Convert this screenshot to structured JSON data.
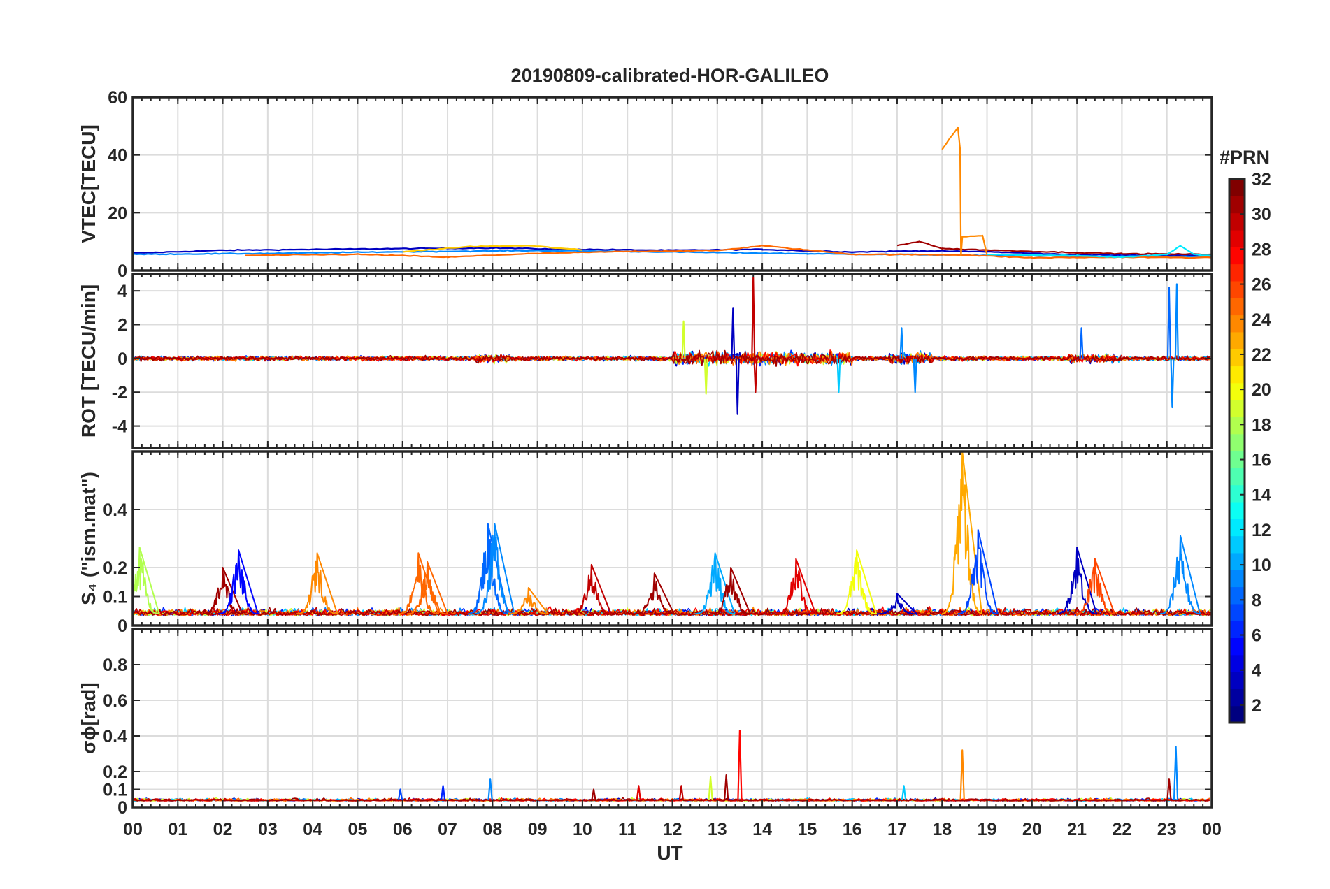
{
  "chart_data": {
    "type": "line",
    "title": "20190809-calibrated-HOR-GALILEO",
    "xlabel": "UT",
    "x_ticks": [
      "00",
      "01",
      "02",
      "03",
      "04",
      "05",
      "06",
      "07",
      "08",
      "09",
      "10",
      "11",
      "12",
      "13",
      "14",
      "15",
      "16",
      "17",
      "18",
      "19",
      "20",
      "21",
      "22",
      "23",
      "00"
    ],
    "xlim": [
      0,
      24
    ],
    "colorbar": {
      "label": "#PRN",
      "range": [
        1,
        32
      ],
      "ticks": [
        "2",
        "4",
        "6",
        "8",
        "10",
        "12",
        "14",
        "16",
        "18",
        "20",
        "22",
        "24",
        "26",
        "28",
        "30",
        "32"
      ],
      "colormap": "jet"
    },
    "panels": [
      {
        "name": "vtec",
        "ylabel": "VTEC[TECU]",
        "ylim": [
          0,
          60
        ],
        "yticks": [
          "0",
          "20",
          "40",
          "60"
        ],
        "series": [
          {
            "prn": 3,
            "points": [
              [
                0,
                6
              ],
              [
                2,
                7
              ],
              [
                4,
                7.3
              ],
              [
                6,
                7.6
              ],
              [
                8,
                7.8
              ],
              [
                10,
                7.3
              ],
              [
                12,
                7
              ],
              [
                14,
                7.3
              ],
              [
                16,
                6.4
              ],
              [
                17.5,
                6.8
              ],
              [
                19,
                6.5
              ],
              [
                21,
                5.4
              ],
              [
                23,
                5.2
              ],
              [
                24,
                5.4
              ]
            ]
          },
          {
            "prn": 9,
            "points": [
              [
                0,
                5.6
              ],
              [
                3,
                5.9
              ],
              [
                6,
                6.5
              ],
              [
                9,
                6.9
              ],
              [
                12,
                6.4
              ],
              [
                15,
                5.8
              ],
              [
                18,
                5.4
              ],
              [
                21,
                4.9
              ],
              [
                24,
                4.8
              ]
            ]
          },
          {
            "prn": 25,
            "points": [
              [
                2.5,
                5.2
              ],
              [
                5,
                5.6
              ],
              [
                7,
                4.6
              ],
              [
                8.8,
                5.8
              ],
              [
                11,
                6.6
              ],
              [
                13,
                6.9
              ],
              [
                14,
                8.6
              ],
              [
                16,
                5.6
              ],
              [
                18.4,
                5.4
              ],
              [
                20,
                4.4
              ],
              [
                22,
                4.6
              ],
              [
                24,
                4.4
              ]
            ]
          },
          {
            "prn": 22,
            "points": [
              [
                6,
                6.5
              ],
              [
                7.5,
                8.3
              ],
              [
                8.8,
                8.6
              ],
              [
                10,
                7.1
              ]
            ]
          },
          {
            "prn": 31,
            "points": [
              [
                17,
                8.6
              ],
              [
                17.5,
                10.1
              ],
              [
                18,
                7.6
              ],
              [
                20,
                6.6
              ],
              [
                22,
                5.8
              ],
              [
                24,
                5.6
              ]
            ]
          },
          {
            "prn": 24,
            "points": [
              [
                18,
                42
              ],
              [
                18.35,
                49.5
              ],
              [
                18.4,
                42
              ],
              [
                18.42,
                5.2
              ],
              [
                18.45,
                11.6
              ],
              [
                18.9,
                12.1
              ],
              [
                19,
                5.5
              ]
            ]
          },
          {
            "prn": 12,
            "points": [
              [
                19,
                5.6
              ],
              [
                21,
                5.1
              ],
              [
                22,
                4.6
              ],
              [
                23,
                5.6
              ],
              [
                23.3,
                8.6
              ],
              [
                23.6,
                5.6
              ],
              [
                24,
                5.1
              ]
            ]
          }
        ]
      },
      {
        "name": "rot",
        "ylabel": "ROT [TECU/min]",
        "ylim": [
          -5.3,
          5
        ],
        "yticks": [
          "-4",
          "-2",
          "0",
          "2",
          "4"
        ],
        "spikes": [
          {
            "t": 12.25,
            "v": 2.2,
            "prn": 19
          },
          {
            "t": 12.75,
            "v": -2.1,
            "prn": 19
          },
          {
            "t": 13.35,
            "v": 3.0,
            "prn": 3
          },
          {
            "t": 13.45,
            "v": -3.3,
            "prn": 3
          },
          {
            "t": 13.8,
            "v": 4.8,
            "prn": 30
          },
          {
            "t": 13.85,
            "v": -2.0,
            "prn": 30
          },
          {
            "t": 15.7,
            "v": -2.0,
            "prn": 11
          },
          {
            "t": 17.1,
            "v": 1.8,
            "prn": 9
          },
          {
            "t": 17.4,
            "v": -2.0,
            "prn": 9
          },
          {
            "t": 21.1,
            "v": 1.8,
            "prn": 8
          },
          {
            "t": 23.05,
            "v": 4.2,
            "prn": 8
          },
          {
            "t": 23.22,
            "v": 4.4,
            "prn": 9
          },
          {
            "t": 23.12,
            "v": -2.9,
            "prn": 9
          }
        ]
      },
      {
        "name": "s4",
        "ylabel": "S₄ (\"ism.mat\")",
        "ylim": [
          0,
          0.6
        ],
        "yticks": [
          "0",
          "0.1",
          "0.2",
          "0.4"
        ],
        "bursts": [
          {
            "t": 0.15,
            "peak": 0.27,
            "prn": 18
          },
          {
            "t": 2.0,
            "peak": 0.2,
            "prn": 31
          },
          {
            "t": 2.35,
            "peak": 0.26,
            "prn": 5
          },
          {
            "t": 4.1,
            "peak": 0.25,
            "prn": 24
          },
          {
            "t": 6.35,
            "peak": 0.25,
            "prn": 25
          },
          {
            "t": 6.55,
            "peak": 0.22,
            "prn": 25
          },
          {
            "t": 7.9,
            "peak": 0.35,
            "prn": 8
          },
          {
            "t": 8.05,
            "peak": 0.35,
            "prn": 9
          },
          {
            "t": 8.8,
            "peak": 0.13,
            "prn": 24
          },
          {
            "t": 10.2,
            "peak": 0.21,
            "prn": 30
          },
          {
            "t": 11.6,
            "peak": 0.18,
            "prn": 31
          },
          {
            "t": 12.95,
            "peak": 0.25,
            "prn": 10
          },
          {
            "t": 13.3,
            "peak": 0.2,
            "prn": 31
          },
          {
            "t": 14.75,
            "peak": 0.23,
            "prn": 29
          },
          {
            "t": 16.1,
            "peak": 0.26,
            "prn": 20
          },
          {
            "t": 17.0,
            "peak": 0.11,
            "prn": 3
          },
          {
            "t": 18.45,
            "peak": 0.6,
            "prn": 23
          },
          {
            "t": 18.8,
            "peak": 0.33,
            "prn": 7
          },
          {
            "t": 21.0,
            "peak": 0.27,
            "prn": 3
          },
          {
            "t": 21.4,
            "peak": 0.23,
            "prn": 26
          },
          {
            "t": 23.3,
            "peak": 0.31,
            "prn": 9
          }
        ]
      },
      {
        "name": "sigma_phi",
        "ylabel": "σϕ[rad]",
        "ylim": [
          0,
          1
        ],
        "yticks": [
          "0",
          "0.1",
          "0.2",
          "0.4",
          "0.6",
          "0.8"
        ],
        "spikes": [
          {
            "t": 5.95,
            "v": 0.1,
            "prn": 7
          },
          {
            "t": 6.9,
            "v": 0.12,
            "prn": 6
          },
          {
            "t": 7.95,
            "v": 0.16,
            "prn": 9
          },
          {
            "t": 10.25,
            "v": 0.1,
            "prn": 31
          },
          {
            "t": 11.25,
            "v": 0.12,
            "prn": 29
          },
          {
            "t": 12.2,
            "v": 0.12,
            "prn": 30
          },
          {
            "t": 12.85,
            "v": 0.17,
            "prn": 19
          },
          {
            "t": 13.2,
            "v": 0.18,
            "prn": 31
          },
          {
            "t": 13.5,
            "v": 0.43,
            "prn": 28
          },
          {
            "t": 17.15,
            "v": 0.12,
            "prn": 11
          },
          {
            "t": 18.45,
            "v": 0.32,
            "prn": 24
          },
          {
            "t": 23.05,
            "v": 0.16,
            "prn": 31
          },
          {
            "t": 23.2,
            "v": 0.34,
            "prn": 9
          }
        ]
      }
    ]
  }
}
